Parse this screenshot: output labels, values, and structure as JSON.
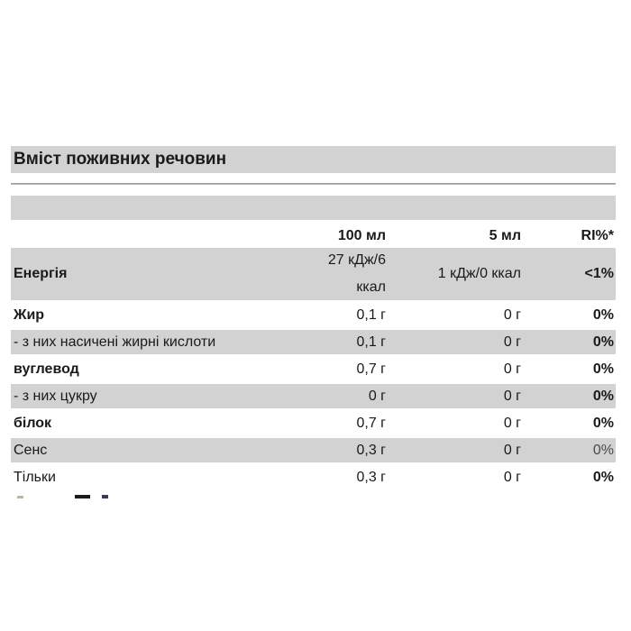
{
  "title": "Вміст поживних речовин",
  "columns": {
    "label": "",
    "c100": "100 мл",
    "c5": "5 мл",
    "ri": "RI%*"
  },
  "rows": [
    {
      "label": "Енергія",
      "v100": "27 кДж/6\nккал",
      "v5": "1 кДж/0 ккал",
      "ri": "<1%"
    },
    {
      "label": "Жир",
      "v100": "0,1 г",
      "v5": "0 г",
      "ri": "0%"
    },
    {
      "label": "- з них насичені жирні кислоти",
      "v100": "0,1 г",
      "v5": "0 г",
      "ri": "0%"
    },
    {
      "label": "вуглевод",
      "v100": "0,7 г",
      "v5": "0 г",
      "ri": "0%"
    },
    {
      "label": "- з них цукру",
      "v100": "0 г",
      "v5": "0 г",
      "ri": "0%"
    },
    {
      "label": "білок",
      "v100": "0,7 г",
      "v5": "0 г",
      "ri": "0%"
    },
    {
      "label": "Сенс",
      "v100": "0,3 г",
      "v5": "0 г",
      "ri": "0%"
    },
    {
      "label": "Тільки",
      "v100": "0,3 г",
      "v5": "0 г",
      "ri": "0%"
    }
  ],
  "truncated_line_note": "text line cut off at bottom edge (only letter tops visible)",
  "colors": {
    "band_gray": "#d2d2d2",
    "divider_gray": "#8e8e8e",
    "text": "#1a1a1a",
    "muted_ri": "#4a4a4a"
  }
}
